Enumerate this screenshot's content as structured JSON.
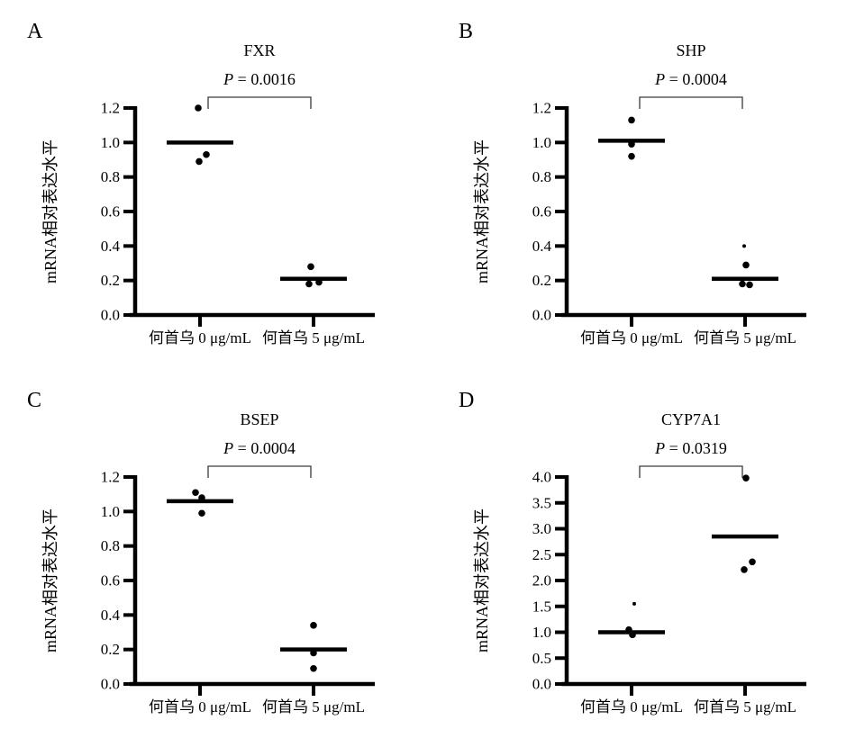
{
  "figure": {
    "background": "#ffffff",
    "ink": "#000000",
    "bracket_color": "#3a3a3a"
  },
  "chart_data": [
    {
      "type": "scatter",
      "panel_label": "A",
      "title": "FXR",
      "p_label": {
        "symbol": "P",
        "rest": " = 0.0016"
      },
      "ylabel": "mRNA相对表达水平",
      "xlabel": "",
      "ylim": [
        0,
        1.2
      ],
      "grid": false,
      "legend": "none",
      "ytick_labels": [
        "0.0",
        "0.2",
        "0.4",
        "0.6",
        "0.8",
        "1.0",
        "1.2"
      ],
      "categories": [
        "何首乌 0 μg/mL",
        "何首乌 5 μg/mL"
      ],
      "groups": [
        {
          "label": "何首乌 0 μg/mL",
          "median": 1.0,
          "points": [
            {
              "v": 1.2,
              "dx": -2
            },
            {
              "v": 0.93,
              "dx": 7
            },
            {
              "v": 0.89,
              "dx": -1
            }
          ]
        },
        {
          "label": "何首乌 5 μg/mL",
          "median": 0.21,
          "points": [
            {
              "v": 0.28,
              "dx": -3
            },
            {
              "v": 0.19,
              "dx": 6
            },
            {
              "v": 0.18,
              "dx": -5
            }
          ]
        }
      ]
    },
    {
      "type": "scatter",
      "panel_label": "B",
      "title": "SHP",
      "p_label": {
        "symbol": "P",
        "rest": " = 0.0004"
      },
      "ylabel": "mRNA相对表达水平",
      "xlabel": "",
      "ylim": [
        0,
        1.2
      ],
      "grid": false,
      "legend": "none",
      "ytick_labels": [
        "0.0",
        "0.2",
        "0.4",
        "0.6",
        "0.8",
        "1.0",
        "1.2"
      ],
      "categories": [
        "何首乌 0 μg/mL",
        "何首乌 5 μg/mL"
      ],
      "groups": [
        {
          "label": "何首乌 0 μg/mL",
          "median": 1.01,
          "points": [
            {
              "v": 1.13,
              "dx": 0
            },
            {
              "v": 0.99,
              "dx": 0
            },
            {
              "v": 0.92,
              "dx": 0
            }
          ]
        },
        {
          "label": "何首乌 5 μg/mL",
          "median": 0.21,
          "points": [
            {
              "v": 0.4,
              "dx": -1,
              "small": true
            },
            {
              "v": 0.29,
              "dx": 1
            },
            {
              "v": 0.18,
              "dx": -3
            },
            {
              "v": 0.175,
              "dx": 5
            }
          ]
        }
      ]
    },
    {
      "type": "scatter",
      "panel_label": "C",
      "title": "BSEP",
      "p_label": {
        "symbol": "P",
        "rest": " = 0.0004"
      },
      "ylabel": "mRNA相对表达水平",
      "xlabel": "",
      "ylim": [
        0,
        1.2
      ],
      "grid": false,
      "legend": "none",
      "ytick_labels": [
        "0.0",
        "0.2",
        "0.4",
        "0.6",
        "0.8",
        "1.0",
        "1.2"
      ],
      "categories": [
        "何首乌 0 μg/mL",
        "何首乌 5 μg/mL"
      ],
      "groups": [
        {
          "label": "何首乌 0 μg/mL",
          "median": 1.06,
          "points": [
            {
              "v": 1.11,
              "dx": -5
            },
            {
              "v": 1.08,
              "dx": 2
            },
            {
              "v": 0.99,
              "dx": 2
            }
          ]
        },
        {
          "label": "何首乌 5 μg/mL",
          "median": 0.2,
          "points": [
            {
              "v": 0.34,
              "dx": 0
            },
            {
              "v": 0.18,
              "dx": 0
            },
            {
              "v": 0.09,
              "dx": 0
            }
          ]
        }
      ]
    },
    {
      "type": "scatter",
      "panel_label": "D",
      "title": "CYP7A1",
      "p_label": {
        "symbol": "P",
        "rest": " = 0.0319"
      },
      "ylabel": "mRNA相对表达水平",
      "xlabel": "",
      "ylim": [
        0,
        4.0
      ],
      "grid": false,
      "legend": "none",
      "ytick_labels": [
        "0.0",
        "0.5",
        "1.0",
        "1.5",
        "2.0",
        "2.5",
        "3.0",
        "3.5",
        "4.0"
      ],
      "categories": [
        "何首乌 0 μg/mL",
        "何首乌 5 μg/mL"
      ],
      "groups": [
        {
          "label": "何首乌 0 μg/mL",
          "median": 1.0,
          "points": [
            {
              "v": 1.55,
              "dx": 3,
              "small": true
            },
            {
              "v": 1.05,
              "dx": -3
            },
            {
              "v": 0.95,
              "dx": 1
            }
          ]
        },
        {
          "label": "何首乌 5 μg/mL",
          "median": 2.85,
          "points": [
            {
              "v": 3.98,
              "dx": 1
            },
            {
              "v": 2.36,
              "dx": 8
            },
            {
              "v": 2.21,
              "dx": -1
            }
          ]
        }
      ]
    }
  ]
}
